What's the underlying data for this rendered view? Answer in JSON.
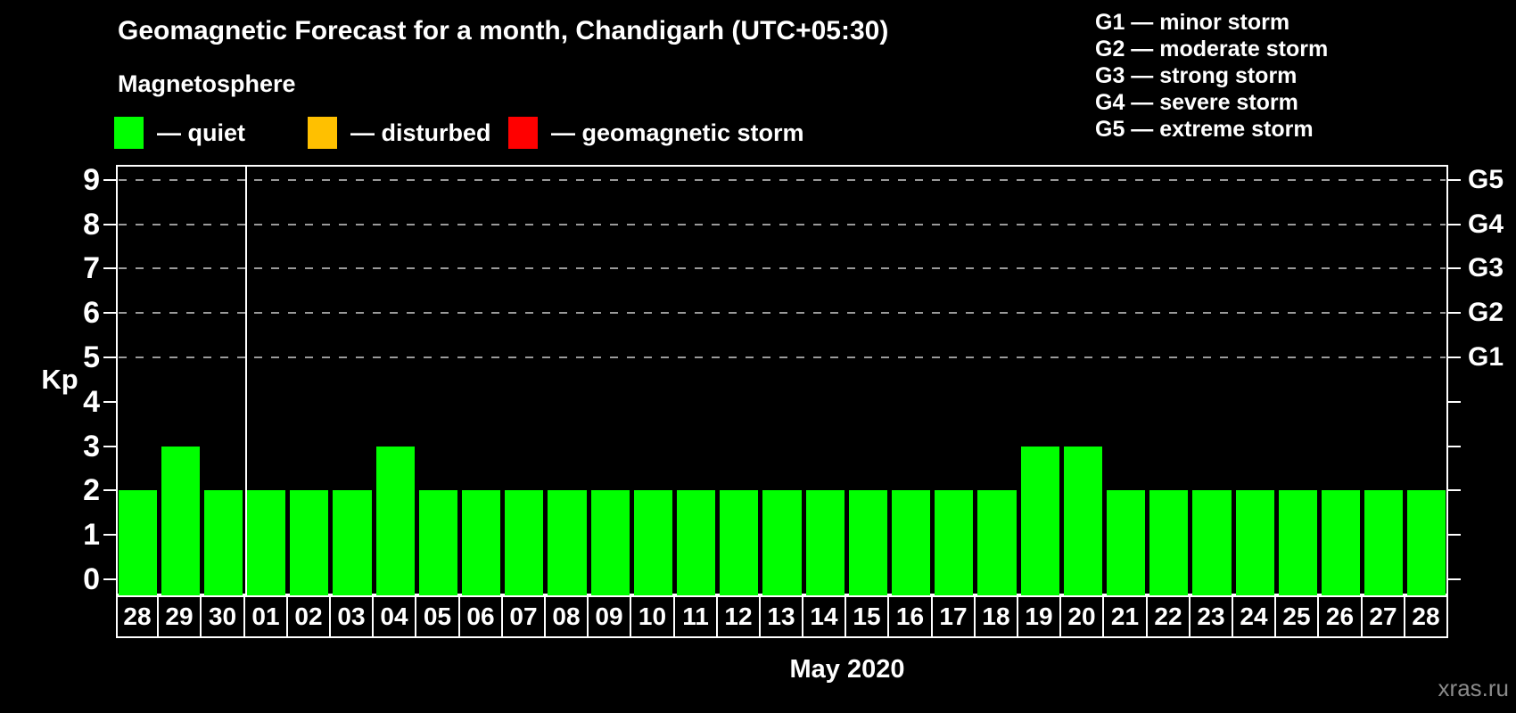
{
  "header": {
    "title": "Geomagnetic Forecast for a month, Chandigarh (UTC+05:30)",
    "subtitle": "Magnetosphere"
  },
  "legend": {
    "items": [
      {
        "name": "quiet",
        "label": "— quiet",
        "color": "#00ff00"
      },
      {
        "name": "disturbed",
        "label": "— disturbed",
        "color": "#ffc000"
      },
      {
        "name": "geomagnetic-storm",
        "label": "— geomagnetic storm",
        "color": "#ff0000"
      }
    ]
  },
  "storm_scale": {
    "lines": [
      "G1 — minor storm",
      "G2 — moderate storm",
      "G3 — strong storm",
      "G4 — severe storm",
      "G5 — extreme storm"
    ]
  },
  "chart_data": {
    "type": "bar",
    "title": "Geomagnetic Forecast for a month, Chandigarh (UTC+05:30)",
    "ylabel": "Kp",
    "xlabel": "May 2020",
    "ylim": [
      0,
      9
    ],
    "yticks": [
      0,
      1,
      2,
      3,
      4,
      5,
      6,
      7,
      8,
      9
    ],
    "grid_values": [
      5,
      6,
      7,
      8,
      9
    ],
    "grid_on": true,
    "legend_position": "top",
    "right_axis": [
      {
        "label": "G1",
        "kp": 5
      },
      {
        "label": "G2",
        "kp": 6
      },
      {
        "label": "G3",
        "kp": 7
      },
      {
        "label": "G4",
        "kp": 8
      },
      {
        "label": "G5",
        "kp": 9
      }
    ],
    "categories": [
      "28",
      "29",
      "30",
      "01",
      "02",
      "03",
      "04",
      "05",
      "06",
      "07",
      "08",
      "09",
      "10",
      "11",
      "12",
      "13",
      "14",
      "15",
      "16",
      "17",
      "18",
      "19",
      "20",
      "21",
      "22",
      "23",
      "24",
      "25",
      "26",
      "27",
      "28"
    ],
    "values": [
      2,
      3,
      2,
      2,
      2,
      2,
      3,
      2,
      2,
      2,
      2,
      2,
      2,
      2,
      2,
      2,
      2,
      2,
      2,
      2,
      2,
      3,
      3,
      2,
      2,
      2,
      2,
      2,
      2,
      2,
      2
    ],
    "bar_color": "#00ff00",
    "month_separator_after_index": 2
  },
  "footer": {
    "month_label": "May 2020",
    "watermark": "xras.ru"
  },
  "colors": {
    "background": "#000000",
    "quiet": "#00ff00",
    "disturbed": "#ffc000",
    "storm": "#ff0000",
    "axis": "#ffffff",
    "grid": "#9a9a9a",
    "watermark": "#8a8a8a"
  }
}
